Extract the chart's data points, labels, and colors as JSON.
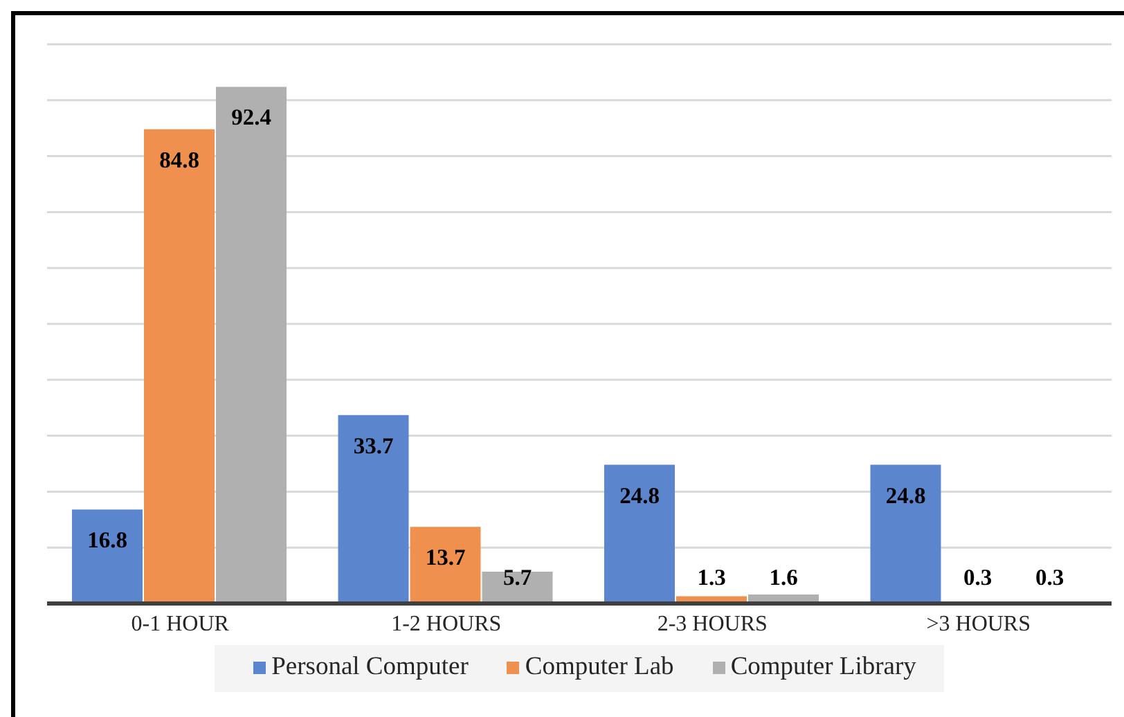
{
  "chart_data": {
    "type": "bar",
    "categories": [
      "0-1 HOUR",
      "1-2 HOURS",
      "2-3 HOURS",
      ">3 HOURS"
    ],
    "series": [
      {
        "name": "Personal Computer",
        "color": "#5b85cd",
        "values": [
          16.8,
          33.7,
          24.8,
          24.8
        ]
      },
      {
        "name": "Computer Lab",
        "color": "#ef904f",
        "values": [
          84.8,
          13.7,
          1.3,
          0.3
        ]
      },
      {
        "name": "Computer Library",
        "color": "#b0b0b0",
        "values": [
          92.4,
          5.7,
          1.6,
          0.3
        ]
      }
    ],
    "ylim": [
      0,
      100
    ],
    "yticks": [
      0,
      10,
      20,
      30,
      40,
      50,
      60,
      70,
      80,
      90,
      100
    ],
    "tick_labels": "x",
    "grid": "y",
    "legend": "bottom",
    "data_labels": true
  }
}
